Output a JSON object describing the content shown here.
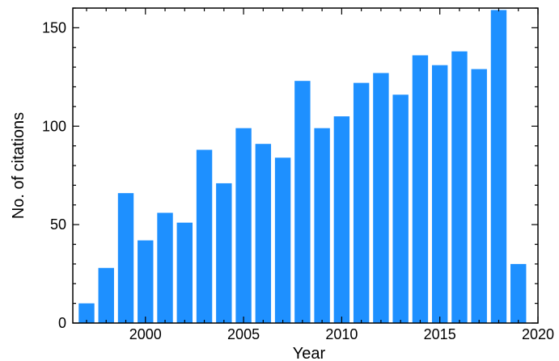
{
  "chart_data": {
    "type": "bar",
    "xlabel": "Year",
    "ylabel": "No. of citations",
    "xlim": [
      1996.3,
      2020
    ],
    "ylim": [
      0,
      160
    ],
    "x_major_ticks": [
      "2000",
      "2005",
      "2010",
      "2015",
      "2020"
    ],
    "y_major_ticks": [
      "0",
      "50",
      "100",
      "150"
    ],
    "grid": false,
    "tick_direction": "in",
    "mirror_ticks": true,
    "bar_color": "#1e90ff",
    "bars": [
      {
        "year": 1997,
        "value": 10
      },
      {
        "year": 1998,
        "value": 28
      },
      {
        "year": 1999,
        "value": 66
      },
      {
        "year": 2000,
        "value": 42
      },
      {
        "year": 2001,
        "value": 56
      },
      {
        "year": 2002,
        "value": 51
      },
      {
        "year": 2003,
        "value": 88
      },
      {
        "year": 2004,
        "value": 71
      },
      {
        "year": 2005,
        "value": 99
      },
      {
        "year": 2006,
        "value": 91
      },
      {
        "year": 2007,
        "value": 84
      },
      {
        "year": 2008,
        "value": 123
      },
      {
        "year": 2009,
        "value": 99
      },
      {
        "year": 2010,
        "value": 105
      },
      {
        "year": 2011,
        "value": 122
      },
      {
        "year": 2012,
        "value": 127
      },
      {
        "year": 2013,
        "value": 116
      },
      {
        "year": 2014,
        "value": 136
      },
      {
        "year": 2015,
        "value": 131
      },
      {
        "year": 2016,
        "value": 138
      },
      {
        "year": 2017,
        "value": 129
      },
      {
        "year": 2018,
        "value": 159
      },
      {
        "year": 2019,
        "value": 30
      }
    ]
  }
}
